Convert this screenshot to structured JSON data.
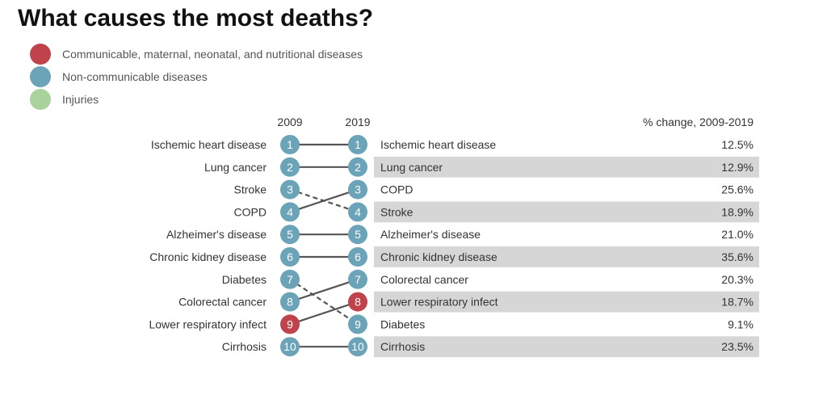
{
  "title": "What causes the most deaths?",
  "legend": [
    {
      "label": "Communicable, maternal, neonatal, and nutritional diseases",
      "color": "#c0424b",
      "category": "communicable"
    },
    {
      "label": "Non-communicable diseases",
      "color": "#6ba3b8",
      "category": "noncommunicable"
    },
    {
      "label": "Injuries",
      "color": "#a8d39d",
      "category": "injuries"
    }
  ],
  "chart_data": {
    "type": "slope",
    "title": "What causes the most deaths?",
    "columns": {
      "left": "2009",
      "right": "2019",
      "change": "% change, 2009-2019"
    },
    "ranks_2009": [
      {
        "rank": 1,
        "cause": "Ischemic heart disease",
        "category": "noncommunicable"
      },
      {
        "rank": 2,
        "cause": "Lung cancer",
        "category": "noncommunicable"
      },
      {
        "rank": 3,
        "cause": "Stroke",
        "category": "noncommunicable"
      },
      {
        "rank": 4,
        "cause": "COPD",
        "category": "noncommunicable"
      },
      {
        "rank": 5,
        "cause": "Alzheimer's disease",
        "category": "noncommunicable"
      },
      {
        "rank": 6,
        "cause": "Chronic kidney disease",
        "category": "noncommunicable"
      },
      {
        "rank": 7,
        "cause": "Diabetes",
        "category": "noncommunicable"
      },
      {
        "rank": 8,
        "cause": "Colorectal cancer",
        "category": "noncommunicable"
      },
      {
        "rank": 9,
        "cause": "Lower respiratory infect",
        "category": "communicable"
      },
      {
        "rank": 10,
        "cause": "Cirrhosis",
        "category": "noncommunicable"
      }
    ],
    "ranks_2019": [
      {
        "rank": 1,
        "cause": "Ischemic heart disease",
        "category": "noncommunicable",
        "change": "12.5%"
      },
      {
        "rank": 2,
        "cause": "Lung cancer",
        "category": "noncommunicable",
        "change": "12.9%"
      },
      {
        "rank": 3,
        "cause": "COPD",
        "category": "noncommunicable",
        "change": "25.6%"
      },
      {
        "rank": 4,
        "cause": "Stroke",
        "category": "noncommunicable",
        "change": "18.9%"
      },
      {
        "rank": 5,
        "cause": "Alzheimer's disease",
        "category": "noncommunicable",
        "change": "21.0%"
      },
      {
        "rank": 6,
        "cause": "Chronic kidney disease",
        "category": "noncommunicable",
        "change": "35.6%"
      },
      {
        "rank": 7,
        "cause": "Colorectal cancer",
        "category": "noncommunicable",
        "change": "20.3%"
      },
      {
        "rank": 8,
        "cause": "Lower respiratory infect",
        "category": "communicable",
        "change": "18.7%"
      },
      {
        "rank": 9,
        "cause": "Diabetes",
        "category": "noncommunicable",
        "change": "9.1%"
      },
      {
        "rank": 10,
        "cause": "Cirrhosis",
        "category": "noncommunicable",
        "change": "23.5%"
      }
    ],
    "line_style": {
      "rise_or_same": "solid",
      "fall": "dashed"
    }
  }
}
